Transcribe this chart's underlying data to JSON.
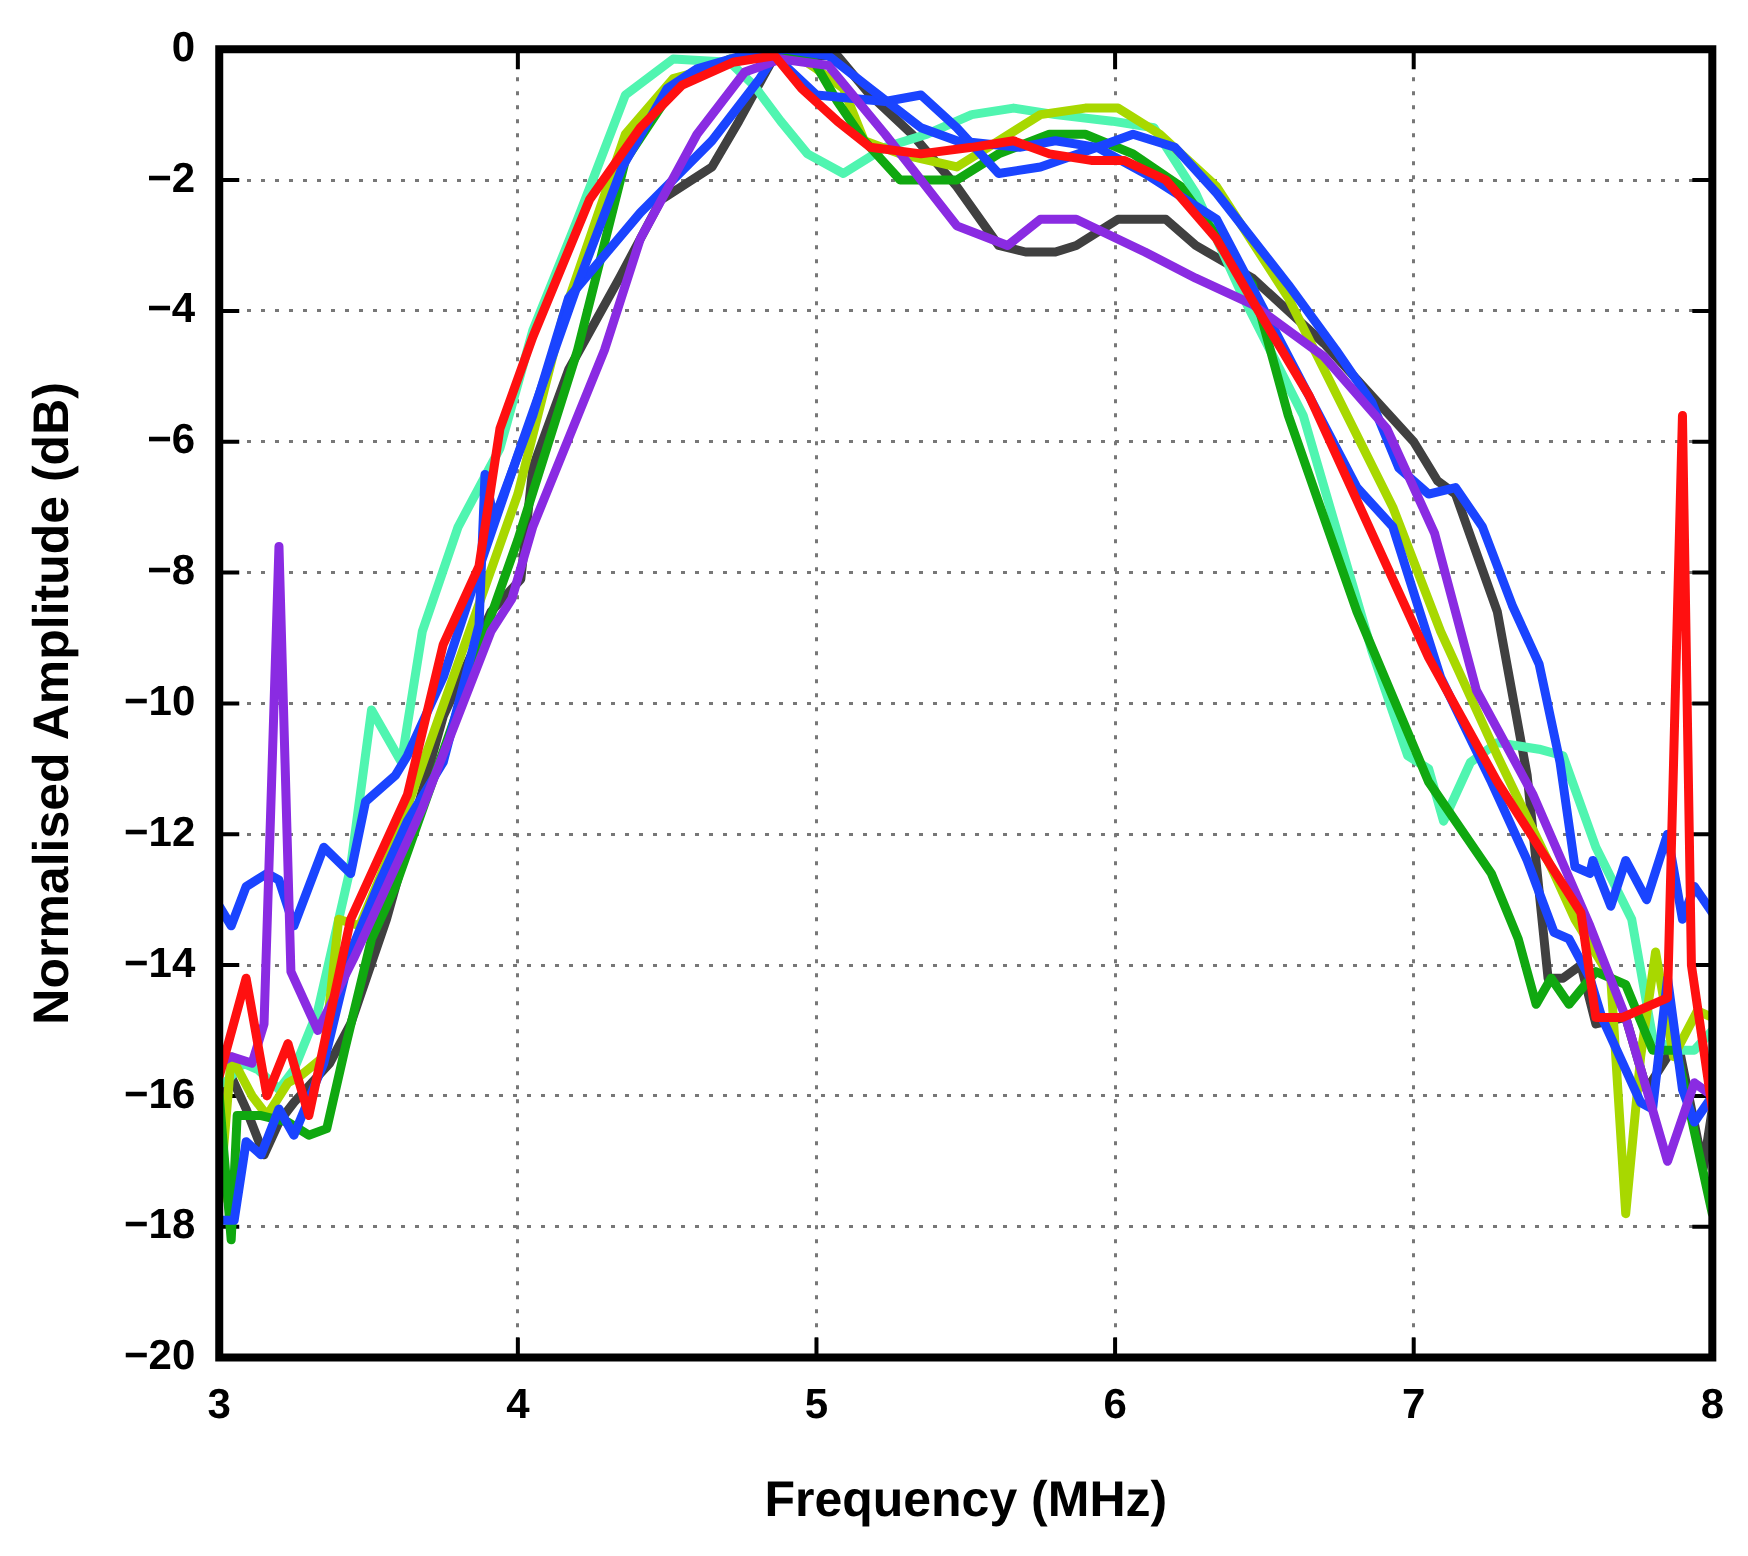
{
  "chart_data": {
    "type": "line",
    "xlabel": "Frequency (MHz)",
    "ylabel": "Normalised Amplitude (dB)",
    "xlim": [
      3,
      8
    ],
    "xticks": [
      3,
      4,
      5,
      6,
      7,
      8
    ],
    "ylim": [
      -20,
      0
    ],
    "yticks": [
      -20,
      -18,
      -16,
      -14,
      -12,
      -10,
      -8,
      -6,
      -4,
      -2,
      0
    ],
    "grid": true,
    "legend": false,
    "marker": "none",
    "line_style": "solid",
    "series": [
      {
        "color": "#ff1010",
        "x": [
          3.0,
          3.09,
          3.16,
          3.23,
          3.3,
          3.44,
          3.63,
          3.75,
          3.87,
          3.94,
          4.05,
          4.24,
          4.41,
          4.55,
          4.72,
          4.86,
          4.95,
          5.07,
          5.18,
          5.35,
          5.52,
          5.66,
          5.78,
          5.92,
          6.03,
          6.17,
          6.34,
          6.48,
          6.65,
          6.72,
          7.05,
          7.28,
          7.56,
          7.61,
          7.7,
          7.85,
          7.9,
          7.93,
          8.0
        ],
        "values": [
          -15.7,
          -14.2,
          -16.0,
          -15.2,
          -16.3,
          -13.3,
          -11.4,
          -9.1,
          -7.9,
          -5.8,
          -4.4,
          -2.3,
          -1.2,
          -0.55,
          -0.2,
          -0.1,
          -0.6,
          -1.1,
          -1.5,
          -1.6,
          -1.5,
          -1.4,
          -1.6,
          -1.7,
          -1.7,
          -2.0,
          -2.9,
          -4.0,
          -5.3,
          -6.0,
          -9.3,
          -11.2,
          -13.2,
          -14.8,
          -14.8,
          -14.5,
          -5.6,
          -14.0,
          -16.2
        ]
      },
      {
        "color": "#8a2be2",
        "x": [
          3.0,
          3.04,
          3.11,
          3.15,
          3.2,
          3.24,
          3.33,
          3.45,
          3.68,
          3.91,
          3.98,
          4.05,
          4.29,
          4.41,
          4.6,
          4.76,
          4.88,
          5.04,
          5.23,
          5.47,
          5.64,
          5.75,
          5.87,
          6.1,
          6.27,
          6.46,
          6.7,
          6.91,
          7.07,
          7.21,
          7.4,
          7.59,
          7.71,
          7.85,
          7.94,
          8.0
        ],
        "values": [
          -15.5,
          -15.4,
          -15.5,
          -14.9,
          -7.6,
          -14.1,
          -15.0,
          -13.9,
          -11.6,
          -8.9,
          -8.4,
          -7.3,
          -4.6,
          -2.9,
          -1.3,
          -0.35,
          -0.15,
          -0.25,
          -1.3,
          -2.7,
          -3.0,
          -2.6,
          -2.6,
          -3.1,
          -3.5,
          -3.9,
          -4.7,
          -5.8,
          -7.4,
          -9.8,
          -11.4,
          -13.4,
          -14.8,
          -17.0,
          -15.8,
          -16.0
        ]
      },
      {
        "color": "#1a44ff",
        "x": [
          3.0,
          3.04,
          3.09,
          3.16,
          3.2,
          3.25,
          3.35,
          3.44,
          3.49,
          3.59,
          3.63,
          3.75,
          3.88,
          4.0,
          4.2,
          4.35,
          4.5,
          4.6,
          4.75,
          4.9,
          5.04,
          5.18,
          5.35,
          5.47,
          5.68,
          5.8,
          5.94,
          6.06,
          6.2,
          6.34,
          6.58,
          6.74,
          6.86,
          6.95,
          7.05,
          7.14,
          7.23,
          7.33,
          7.42,
          7.49,
          7.54,
          7.59,
          7.6,
          7.66,
          7.71,
          7.78,
          7.85,
          7.9,
          7.94,
          8.0
        ],
        "values": [
          -13.1,
          -13.4,
          -12.8,
          -12.6,
          -12.7,
          -13.4,
          -12.2,
          -12.6,
          -11.5,
          -11.1,
          -10.8,
          -9.6,
          -7.8,
          -6.2,
          -3.6,
          -1.8,
          -0.6,
          -0.3,
          -0.1,
          0,
          -0.1,
          -0.6,
          -1.2,
          -1.4,
          -1.5,
          -1.4,
          -1.5,
          -1.3,
          -1.5,
          -2.2,
          -3.6,
          -4.6,
          -5.4,
          -6.4,
          -6.8,
          -6.7,
          -7.3,
          -8.5,
          -9.4,
          -10.9,
          -12.5,
          -12.6,
          -12.4,
          -13.1,
          -12.4,
          -13.0,
          -12.0,
          -13.3,
          -12.8,
          -13.2
        ]
      },
      {
        "color": "#1a44ff",
        "x": [
          3.0,
          3.05,
          3.09,
          3.14,
          3.2,
          3.25,
          3.35,
          3.44,
          3.54,
          3.63,
          3.75,
          3.87,
          3.89,
          3.92,
          4.05,
          4.17,
          4.41,
          4.65,
          4.81,
          4.86,
          5.0,
          5.23,
          5.35,
          5.47,
          5.61,
          5.75,
          5.94,
          6.1,
          6.34,
          6.81,
          6.93,
          7.09,
          7.26,
          7.38,
          7.47,
          7.52,
          7.59,
          7.63,
          7.76,
          7.8,
          7.85,
          7.9,
          7.94,
          8.0
        ],
        "values": [
          -17.9,
          -17.9,
          -16.7,
          -16.9,
          -16.2,
          -16.6,
          -15.5,
          -13.8,
          -12.7,
          -11.8,
          -10.9,
          -8.8,
          -6.5,
          -7.2,
          -5.6,
          -3.8,
          -2.5,
          -1.4,
          -0.45,
          -0.1,
          -0.7,
          -0.8,
          -0.7,
          -1.2,
          -1.9,
          -1.8,
          -1.5,
          -1.9,
          -2.6,
          -6.7,
          -7.3,
          -9.6,
          -11.2,
          -12.4,
          -13.5,
          -13.6,
          -14.2,
          -14.8,
          -16.1,
          -16.2,
          -14.2,
          -15.9,
          -16.4,
          -16.0
        ]
      },
      {
        "color": "#10a810",
        "x": [
          3.0,
          3.04,
          3.06,
          3.14,
          3.23,
          3.3,
          3.36,
          3.42,
          3.51,
          3.59,
          4.0,
          4.2,
          4.36,
          4.52,
          4.71,
          4.98,
          5.07,
          5.16,
          5.28,
          5.47,
          5.61,
          5.78,
          5.9,
          6.06,
          6.22,
          6.46,
          6.58,
          6.81,
          7.05,
          7.26,
          7.35,
          7.41,
          7.46,
          7.52,
          7.61,
          7.71,
          7.8,
          7.88,
          8.0
        ],
        "values": [
          -16.0,
          -18.2,
          -16.3,
          -16.3,
          -16.4,
          -16.6,
          -16.5,
          -15.3,
          -13.6,
          -12.8,
          -7.5,
          -4.6,
          -1.7,
          -0.6,
          -0.15,
          -0.1,
          -0.8,
          -1.4,
          -2.0,
          -2.0,
          -1.6,
          -1.3,
          -1.3,
          -1.6,
          -2.1,
          -3.6,
          -5.6,
          -8.6,
          -11.2,
          -12.6,
          -13.6,
          -14.6,
          -14.2,
          -14.6,
          -14.1,
          -14.3,
          -15.3,
          -15.3,
          -17.8
        ]
      },
      {
        "color": "#a8d800",
        "x": [
          3.0,
          3.04,
          3.11,
          3.16,
          3.23,
          3.27,
          3.35,
          3.4,
          3.47,
          3.59,
          4.0,
          4.15,
          4.36,
          4.52,
          4.64,
          4.76,
          4.9,
          5.0,
          5.09,
          5.16,
          5.28,
          5.47,
          5.61,
          5.75,
          5.9,
          6.01,
          6.15,
          6.34,
          6.58,
          6.93,
          7.09,
          7.28,
          7.47,
          7.54,
          7.66,
          7.71,
          7.76,
          7.81,
          7.87,
          7.95,
          8.0
        ],
        "values": [
          -17.6,
          -15.4,
          -16.0,
          -16.3,
          -15.8,
          -15.7,
          -15.4,
          -13.3,
          -13.4,
          -12.1,
          -6.8,
          -4.1,
          -1.3,
          -0.45,
          -0.3,
          -0.1,
          0,
          -0.3,
          -0.6,
          -1.4,
          -1.6,
          -1.8,
          -1.4,
          -1.0,
          -0.9,
          -0.9,
          -1.3,
          -2.1,
          -3.8,
          -7.0,
          -8.9,
          -10.8,
          -12.6,
          -13.3,
          -14.2,
          -17.8,
          -15.4,
          -13.8,
          -15.4,
          -14.7,
          -14.8
        ]
      },
      {
        "color": "#50f5b0",
        "x": [
          3.02,
          3.08,
          3.13,
          3.2,
          3.25,
          3.33,
          3.44,
          3.51,
          3.61,
          3.68,
          3.8,
          3.94,
          4.05,
          4.2,
          4.36,
          4.52,
          4.71,
          4.79,
          4.88,
          4.97,
          5.09,
          5.23,
          5.37,
          5.52,
          5.66,
          5.8,
          5.99,
          6.13,
          6.27,
          6.43,
          6.63,
          6.86,
          6.98,
          7.05,
          7.1,
          7.19,
          7.28,
          7.42,
          7.5,
          7.61,
          7.73,
          7.8,
          7.87,
          7.94,
          8.0
        ],
        "values": [
          -15.8,
          -15.5,
          -15.6,
          -15.9,
          -15.6,
          -14.7,
          -12.5,
          -10.1,
          -10.9,
          -8.9,
          -7.3,
          -6.1,
          -4.3,
          -2.6,
          -0.7,
          -0.15,
          -0.2,
          -0.55,
          -1.1,
          -1.6,
          -1.9,
          -1.5,
          -1.3,
          -1.0,
          -0.9,
          -1.0,
          -1.1,
          -1.2,
          -2.2,
          -3.8,
          -5.6,
          -9.2,
          -10.8,
          -11.0,
          -11.8,
          -10.9,
          -10.6,
          -10.7,
          -10.8,
          -12.2,
          -13.3,
          -15.1,
          -15.3,
          -15.3,
          -15.0
        ]
      },
      {
        "color": "#404040",
        "x": [
          3.0,
          3.04,
          3.09,
          3.15,
          3.2,
          3.25,
          3.33,
          3.37,
          3.44,
          3.56,
          3.75,
          3.91,
          4.01,
          4.05,
          4.17,
          4.34,
          4.48,
          4.65,
          4.74,
          4.86,
          5.0,
          5.07,
          5.18,
          5.32,
          5.47,
          5.61,
          5.7,
          5.8,
          5.87,
          6.01,
          6.17,
          6.27,
          6.46,
          6.7,
          6.88,
          7.0,
          7.08,
          7.14,
          7.28,
          7.38,
          7.45,
          7.5,
          7.56,
          7.61,
          7.71,
          7.78,
          7.85,
          7.89,
          7.97,
          8.0
        ],
        "values": [
          -16.0,
          -15.7,
          -16.2,
          -16.9,
          -16.4,
          -16.1,
          -15.7,
          -15.5,
          -14.9,
          -13.3,
          -10.2,
          -8.6,
          -8.1,
          -6.4,
          -4.9,
          -3.5,
          -2.3,
          -1.8,
          -1.1,
          -0.1,
          -0.1,
          -0.1,
          -0.7,
          -1.3,
          -2.1,
          -3.0,
          -3.1,
          -3.1,
          -3.0,
          -2.6,
          -2.6,
          -3.0,
          -3.5,
          -4.5,
          -5.4,
          -6.0,
          -6.6,
          -6.8,
          -8.6,
          -11.1,
          -14.2,
          -14.2,
          -14.0,
          -14.9,
          -14.8,
          -15.9,
          -15.4,
          -15.3,
          -17.1,
          -16.2
        ]
      }
    ]
  }
}
